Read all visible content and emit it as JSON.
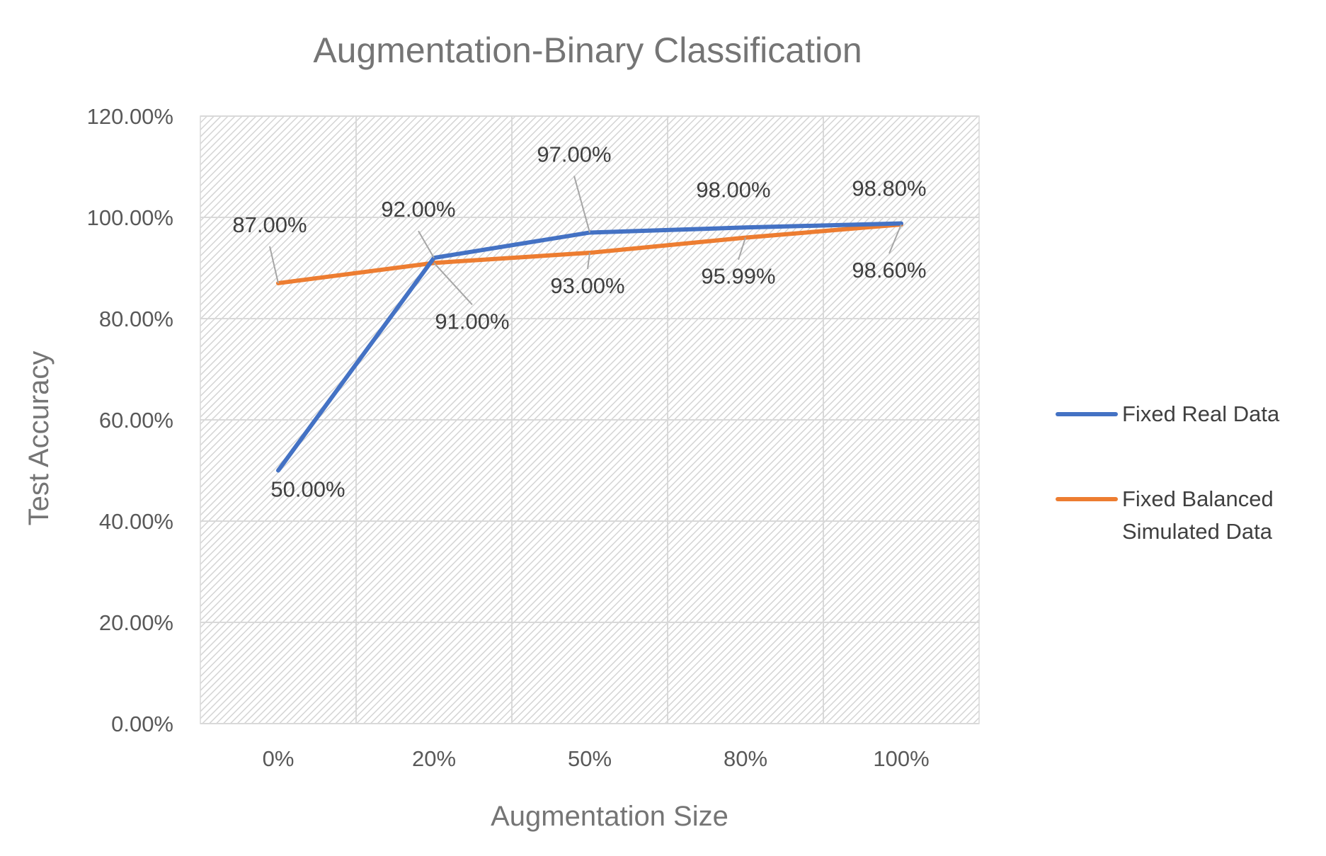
{
  "chart_data": {
    "type": "line",
    "title": "Augmentation-Binary Classification",
    "xlabel": "Augmentation Size",
    "ylabel": "Test Accuracy",
    "categories": [
      "0%",
      "20%",
      "50%",
      "80%",
      "100%"
    ],
    "ylim": [
      0,
      1.2
    ],
    "yticks": [
      0,
      0.2,
      0.4,
      0.6,
      0.8,
      1.0,
      1.2
    ],
    "ytick_labels": [
      "0.00%",
      "20.00%",
      "40.00%",
      "60.00%",
      "80.00%",
      "100.00%",
      "120.00%"
    ],
    "grid": true,
    "legend_position": "right",
    "series": [
      {
        "name": "Fixed Real Data",
        "color": "#4472C4",
        "values": [
          0.5,
          0.92,
          0.97,
          0.98,
          0.988
        ],
        "labels": [
          "50.00%",
          "92.00%",
          "97.00%",
          "98.00%",
          "98.80%"
        ]
      },
      {
        "name": "Fixed Balanced Simulated Data",
        "legend_lines": [
          "Fixed Balanced",
          "Simulated Data"
        ],
        "color": "#ED7D31",
        "values": [
          0.87,
          0.91,
          0.93,
          0.9599,
          0.986
        ],
        "labels": [
          "87.00%",
          "91.00%",
          "93.00%",
          "95.99%",
          "98.60%"
        ]
      }
    ]
  }
}
